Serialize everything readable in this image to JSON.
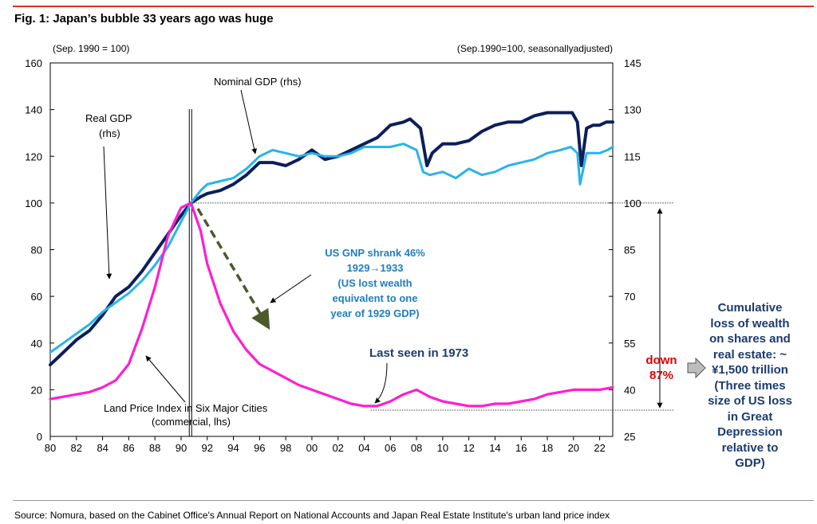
{
  "title": "Fig. 1: Japan’s bubble 33 years ago was huge",
  "source": "Source: Nomura, based on the Cabinet Office's Annual Report on National Accounts and Japan Real Estate Institute's urban land price index",
  "colors": {
    "nominal_gdp": "#0c1f5c",
    "real_gdp": "#28b4ea",
    "land_price": "#ff1ed2",
    "arrow_us": "#4a5a2c",
    "note_us": "#1f7dc0",
    "down": "#e00000",
    "side": "#1b3b6f"
  },
  "annotations": {
    "lhs_unit": "(Sep. 1990 = 100)",
    "rhs_unit": "(Sep.1990=100, seasonallyadjusted)",
    "nominal_label": "Nominal  GDP (rhs)",
    "real_label_1": "Real  GDP",
    "real_label_2": "(rhs)",
    "land_label_1": "Land Price Index in Six Major Cities",
    "land_label_2": "(commercial, lhs)",
    "us_note": [
      "US GNP shrank 46%",
      "1929→1933",
      "(US lost wealth",
      "equivalent to one",
      "year of 1929 GDP)"
    ],
    "last_seen": "Last seen in 1973",
    "down": [
      "down",
      "87%"
    ],
    "side_note": [
      "Cumulative",
      "loss of wealth",
      "on shares and",
      "real estate: ~",
      "¥1,500 trillion",
      "(Three times",
      "size of US loss",
      "in Great",
      "Depression",
      "relative to",
      "GDP)"
    ]
  },
  "chart_data": {
    "type": "line",
    "title": "Fig. 1: Japan’s bubble 33 years ago was huge",
    "x_ticks": [
      "80",
      "82",
      "84",
      "86",
      "88",
      "90",
      "92",
      "94",
      "96",
      "98",
      "00",
      "02",
      "04",
      "06",
      "08",
      "10",
      "12",
      "14",
      "16",
      "18",
      "20",
      "22"
    ],
    "x_range": [
      1980,
      2023
    ],
    "y_left": {
      "label": "(Sep. 1990 = 100)",
      "range": [
        0,
        160
      ],
      "ticks": [
        "0",
        "20",
        "40",
        "60",
        "80",
        "100",
        "120",
        "140",
        "160"
      ]
    },
    "y_right": {
      "label": "(Sep.1990=100, seasonallyadjusted)",
      "range": [
        25,
        145
      ],
      "ticks": [
        "25",
        "40",
        "55",
        "70",
        "85",
        "100",
        "115",
        "130",
        "145"
      ]
    },
    "grid": false,
    "series": [
      {
        "name": "Nominal  GDP (rhs)",
        "axis": "right",
        "x": [
          1980,
          1981,
          1982,
          1983,
          1984,
          1985,
          1986,
          1987,
          1988,
          1989,
          1990.0,
          1990.75,
          1991.5,
          1992,
          1993,
          1994,
          1995,
          1996,
          1997,
          1998,
          1999,
          2000,
          2001,
          2002,
          2003,
          2004,
          2005,
          2006,
          2007,
          2007.5,
          2008.3,
          2008.8,
          2009.2,
          2010,
          2011,
          2012,
          2013,
          2014,
          2015,
          2016,
          2017,
          2018,
          2018.7,
          2019.3,
          2019.9,
          2020.3,
          2020.6,
          2021,
          2021.5,
          2022,
          2022.5,
          2023
        ],
        "y": [
          48,
          52,
          56,
          59,
          64,
          70,
          73,
          78,
          84,
          90,
          96,
          100,
          102,
          103,
          104,
          106,
          109,
          113,
          113,
          112,
          114,
          117,
          114,
          115,
          117,
          119,
          121,
          125,
          126,
          127,
          124,
          112,
          116,
          119,
          119,
          120,
          123,
          125,
          126,
          126,
          128,
          129,
          129,
          129,
          129,
          126,
          112,
          124,
          125,
          125,
          126,
          126
        ]
      },
      {
        "name": "Real  GDP (rhs)",
        "axis": "right",
        "x": [
          1980,
          1981,
          1982,
          1983,
          1984,
          1985,
          1986,
          1987,
          1988,
          1989,
          1990.0,
          1990.75,
          1991.5,
          1992,
          1993,
          1994,
          1995,
          1996,
          1997,
          1998,
          1999,
          2000,
          2001,
          2002,
          2003,
          2004,
          2005,
          2006,
          2007,
          2008,
          2008.5,
          2009,
          2010,
          2011,
          2012,
          2013,
          2014,
          2015,
          2016,
          2017,
          2018,
          2019,
          2019.8,
          2020.3,
          2020.5,
          2021,
          2022,
          2022.6,
          2023
        ],
        "y": [
          52,
          55,
          58,
          61,
          65,
          68,
          71,
          75,
          80,
          86,
          94,
          100,
          104,
          106,
          107,
          108,
          111,
          115,
          117,
          116,
          115,
          116,
          115,
          115,
          116,
          118,
          118,
          118,
          119,
          117,
          110,
          109,
          110,
          108,
          111,
          109,
          110,
          112,
          113,
          114,
          116,
          117,
          118,
          116,
          106,
          116,
          116,
          117,
          118
        ]
      },
      {
        "name": "Land Price Index in Six Major Cities (commercial, lhs)",
        "axis": "left",
        "x": [
          1980,
          1981,
          1982,
          1983,
          1984,
          1985,
          1986,
          1987,
          1988,
          1989,
          1990,
          1990.75,
          1991.5,
          1992,
          1993,
          1994,
          1995,
          1996,
          1997,
          1998,
          1999,
          2000,
          2001,
          2002,
          2003,
          2004,
          2005,
          2006,
          2007,
          2008,
          2009,
          2010,
          2011,
          2012,
          2013,
          2014,
          2015,
          2016,
          2017,
          2018,
          2019,
          2020,
          2021,
          2022,
          2023
        ],
        "y": [
          16,
          17,
          18,
          19,
          21,
          24,
          31,
          46,
          64,
          86,
          98,
          100,
          88,
          74,
          57,
          45,
          37,
          31,
          28,
          25,
          22,
          20,
          18,
          16,
          14,
          13,
          13,
          15,
          18,
          20,
          17,
          15,
          14,
          13,
          13,
          14,
          14,
          15,
          16,
          18,
          19,
          20,
          20,
          20,
          21
        ]
      }
    ]
  }
}
